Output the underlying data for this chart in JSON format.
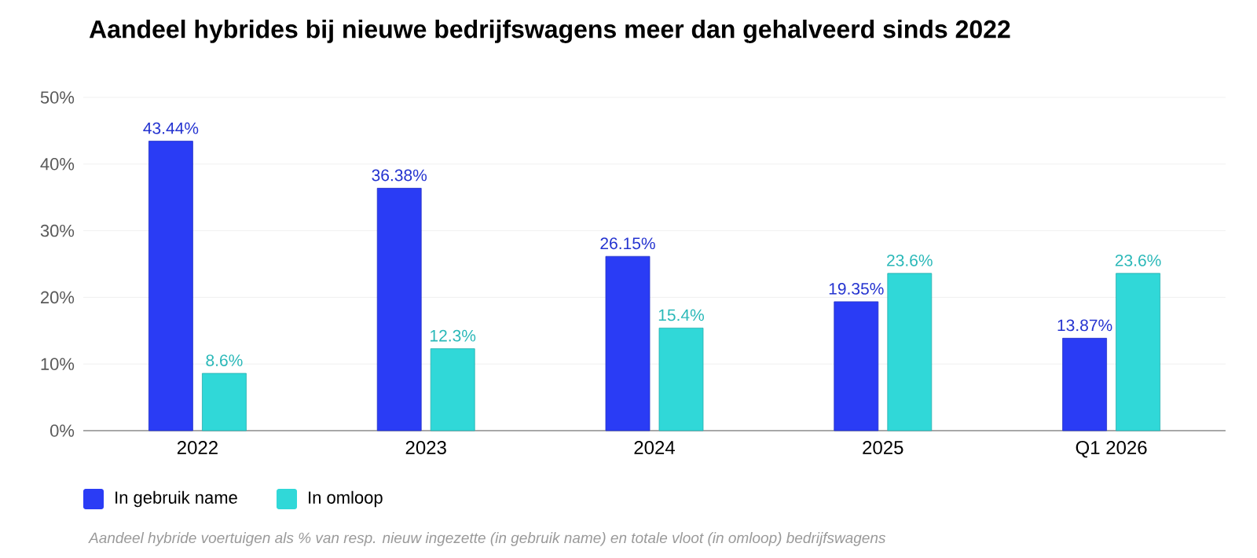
{
  "chart_data": {
    "type": "bar",
    "title": "Aandeel hybrides bij nieuwe bedrijfswagens meer dan gehalveerd sinds 2022",
    "categories": [
      "2022",
      "2023",
      "2024",
      "2025",
      "Q1 2026"
    ],
    "series": [
      {
        "name": "In gebruik name",
        "color": "#2a3cf5",
        "values": [
          43.44,
          36.38,
          26.15,
          19.35,
          13.87
        ],
        "value_labels": [
          "43.44%",
          "36.38%",
          "26.15%",
          "19.35%",
          "13.87%"
        ]
      },
      {
        "name": "In omloop",
        "color": "#30d8d8",
        "values": [
          8.6,
          12.3,
          15.4,
          23.6,
          23.6
        ],
        "value_labels": [
          "8.6%",
          "12.3%",
          "15.4%",
          "23.6%",
          "23.6%"
        ]
      }
    ],
    "ylim": [
      0,
      50
    ],
    "yticks": [
      {
        "value": 0,
        "label": "0%"
      },
      {
        "value": 10,
        "label": "10%"
      },
      {
        "value": 20,
        "label": "20%"
      },
      {
        "value": 30,
        "label": "30%"
      },
      {
        "value": 40,
        "label": "40%"
      },
      {
        "value": 50,
        "label": "50%"
      }
    ],
    "grid": "y",
    "legend": "bottom left",
    "annotations": [
      "Aandeel hybride voertuigen als % van resp. nieuw ingezette (in gebruik name) en totale vloot (in omloop) bedrijfswagens"
    ]
  }
}
